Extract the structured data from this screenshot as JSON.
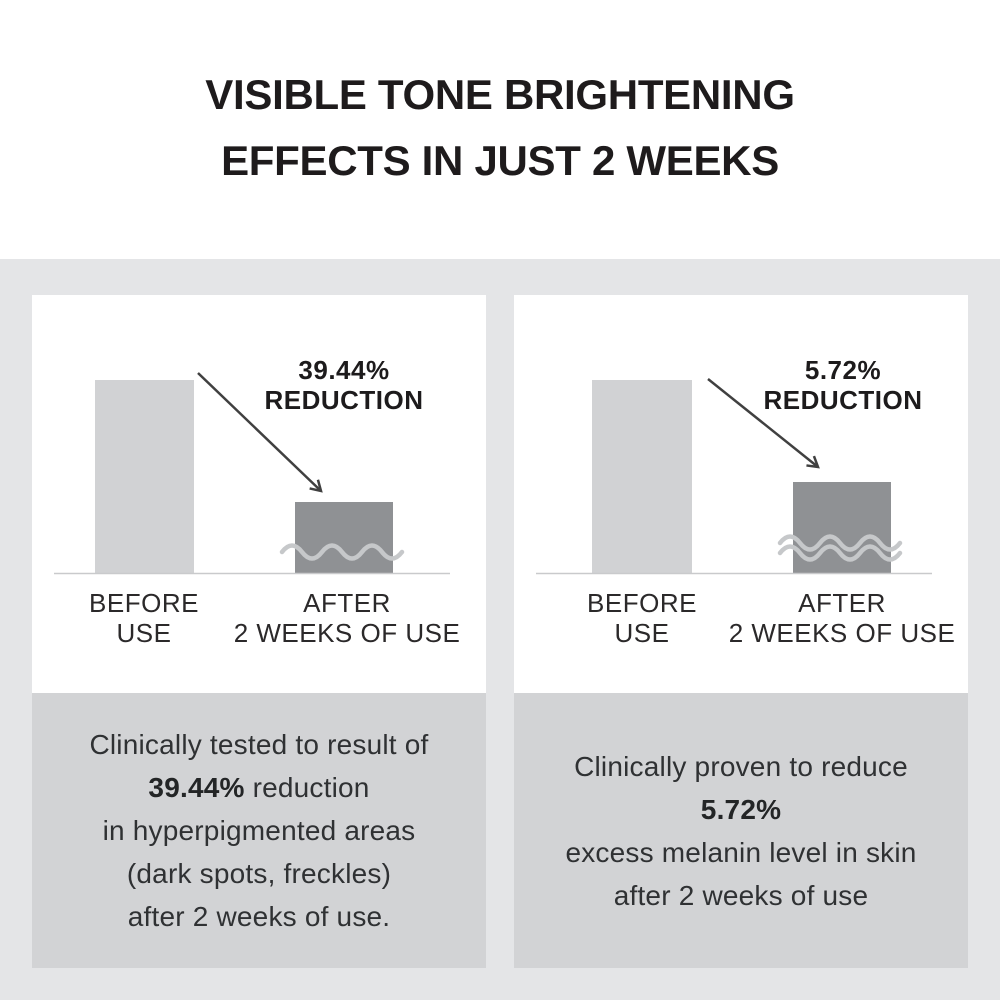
{
  "header": {
    "title_line1": "VISIBLE TONE BRIGHTENING",
    "title_line2": "EFFECTS IN JUST 2 WEEKS"
  },
  "chart_data": [
    {
      "type": "bar",
      "title": "39.44% REDUCTION",
      "annotation_value": "39.44%",
      "annotation_word": "REDUCTION",
      "categories": [
        "BEFORE USE",
        "AFTER 2 WEEKS OF USE"
      ],
      "values_relative": [
        1.0,
        0.37
      ],
      "reduction_percent": 39.44,
      "bar1_label_line1": "BEFORE",
      "bar1_label_line2": "USE",
      "bar2_label_line1": "AFTER",
      "bar2_label_line2": "2 WEEKS OF USE",
      "axis_break_waves": 1,
      "legend_position": "none",
      "grid": false
    },
    {
      "type": "bar",
      "title": "5.72% REDUCTION",
      "annotation_value": "5.72%",
      "annotation_word": "REDUCTION",
      "categories": [
        "BEFORE USE",
        "AFTER 2 WEEKS OF USE"
      ],
      "values_relative": [
        1.0,
        0.47
      ],
      "reduction_percent": 5.72,
      "bar1_label_line1": "BEFORE",
      "bar1_label_line2": "USE",
      "bar2_label_line1": "AFTER",
      "bar2_label_line2": "2 WEEKS OF USE",
      "axis_break_waves": 2,
      "legend_position": "none",
      "grid": false
    }
  ],
  "captions": {
    "left": {
      "line1": "Clinically tested to result of",
      "line2_bold": "39.44%",
      "line2_rest": " reduction",
      "line3": "in hyperpigmented areas",
      "line4": "(dark spots, freckles)",
      "line5": "after 2 weeks of use."
    },
    "right": {
      "line1": "Clinically proven to reduce",
      "line2_bold": "5.72%",
      "line3": "excess melanin level in skin",
      "line4": "after 2 weeks of use"
    }
  },
  "colors": {
    "page_background": "#ffffff",
    "section_background": "#e4e5e7",
    "caption_background": "#d2d3d5",
    "card_background": "#ffffff",
    "bar_before": "#d1d2d4",
    "bar_after": "#8f9194",
    "baseline": "#c9cacc",
    "axis_break_wave": "#c6c8ca",
    "arrow": "#404040",
    "text_primary": "#1e1b1c",
    "text_caption": "#2f3133"
  }
}
